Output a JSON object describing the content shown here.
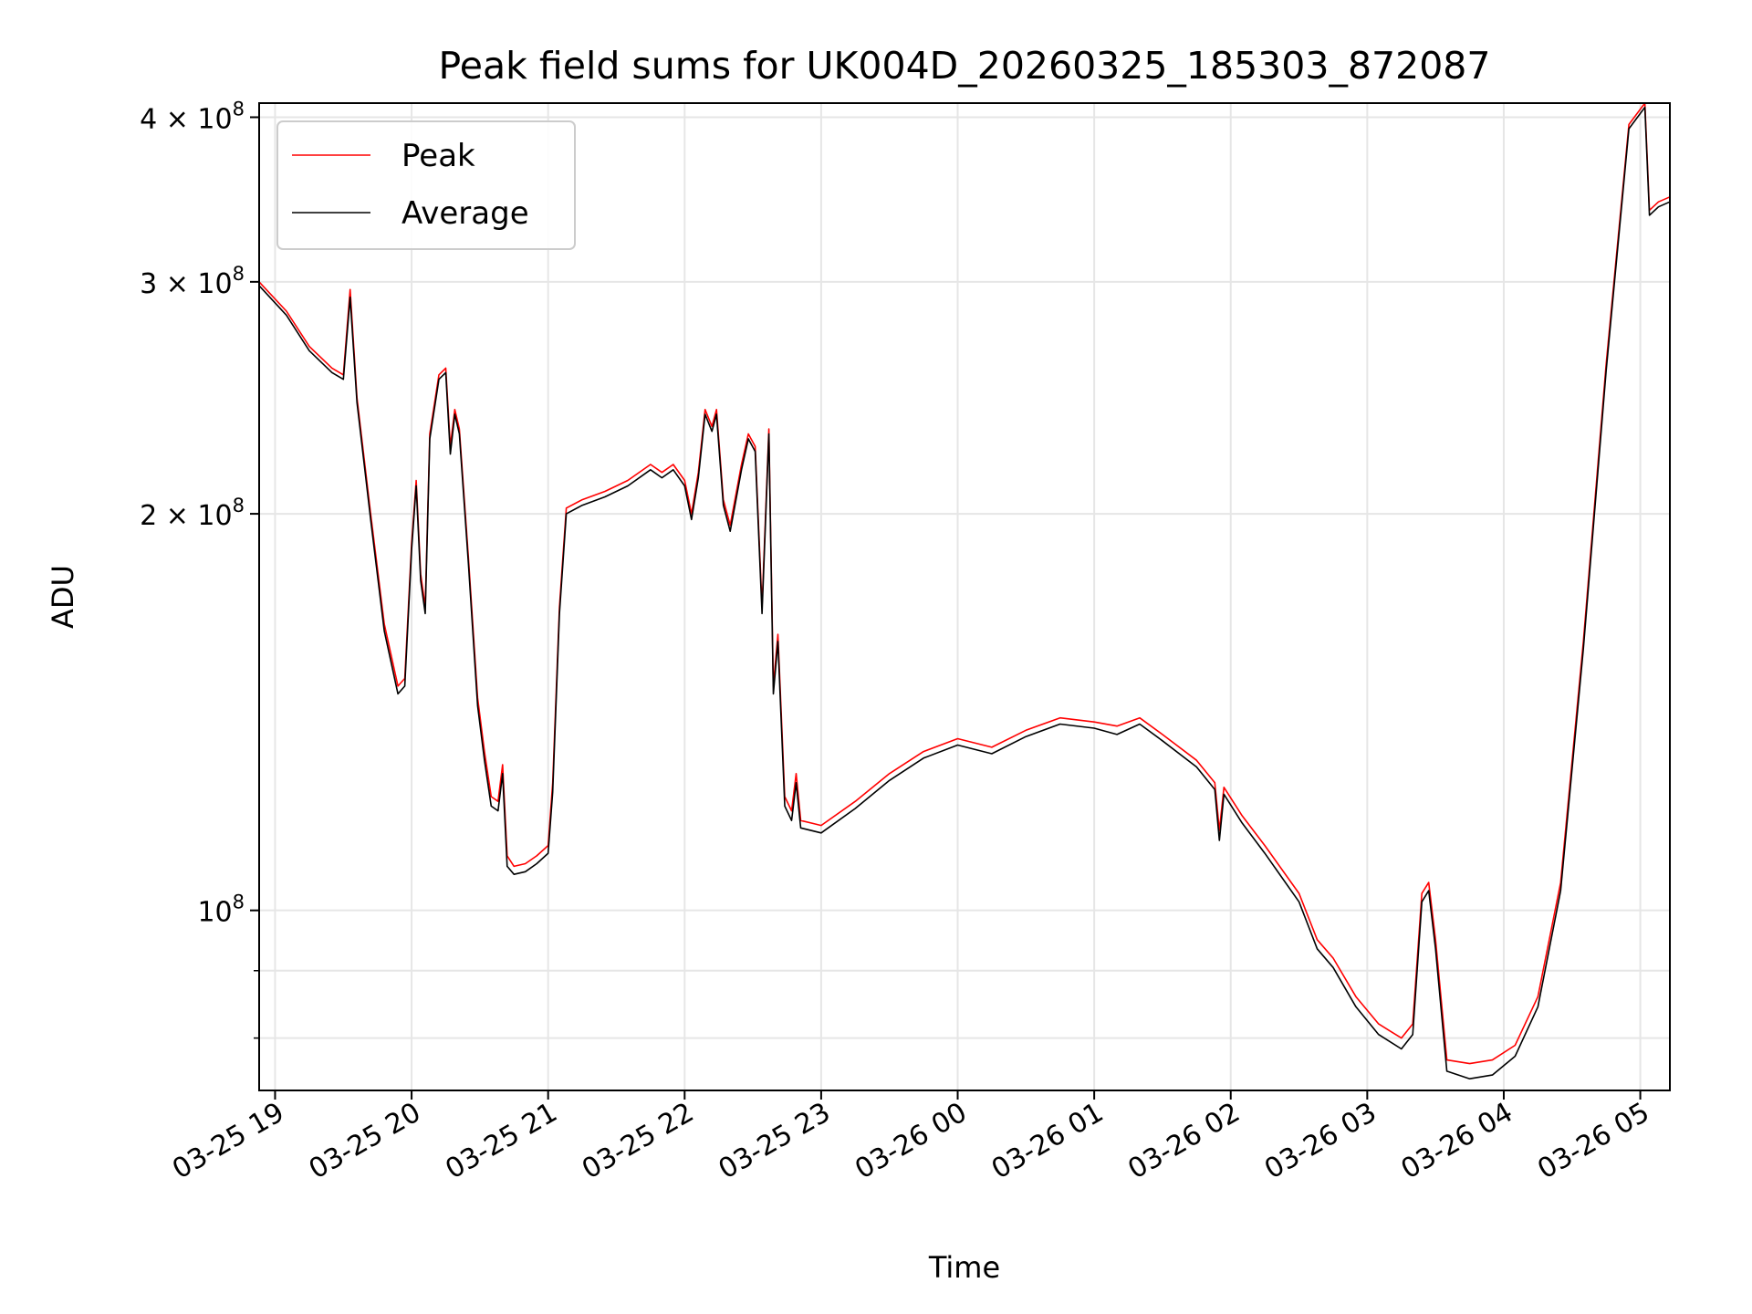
{
  "chart_data": {
    "type": "line",
    "title": "Peak field sums for UK004D_20260325_185303_872087",
    "xlabel": "Time",
    "ylabel": "ADU",
    "yscale": "log",
    "grid": true,
    "legend_position": "top-left",
    "xlim": [
      "2026-03-25 18:53",
      "2026-03-26 05:13"
    ],
    "ylim": [
      73000000,
      410000000
    ],
    "x_ticks": [
      "03-25 19",
      "03-25 20",
      "03-25 21",
      "03-25 22",
      "03-25 23",
      "03-26 00",
      "03-26 01",
      "03-26 02",
      "03-26 03",
      "03-26 04",
      "03-26 05"
    ],
    "y_ticks": [
      {
        "value": 100000000,
        "base": "10",
        "exponent": "8",
        "mantissa": ""
      },
      {
        "value": 200000000,
        "base": "10",
        "exponent": "8",
        "mantissa": "2"
      },
      {
        "value": 300000000,
        "base": "10",
        "exponent": "8",
        "mantissa": "3"
      },
      {
        "value": 400000000,
        "base": "10",
        "exponent": "8",
        "mantissa": "4"
      }
    ],
    "y_minor_ticks": [
      80000000,
      90000000
    ],
    "series": [
      {
        "name": "Peak",
        "color": "#ff0000",
        "points": [
          [
            "2026-03-25 18:53",
            300000000
          ],
          [
            "2026-03-25 19:05",
            285000000
          ],
          [
            "2026-03-25 19:15",
            268000000
          ],
          [
            "2026-03-25 19:25",
            258000000
          ],
          [
            "2026-03-25 19:30",
            255000000
          ],
          [
            "2026-03-25 19:33",
            296000000
          ],
          [
            "2026-03-25 19:36",
            245000000
          ],
          [
            "2026-03-25 19:42",
            200000000
          ],
          [
            "2026-03-25 19:48",
            165000000
          ],
          [
            "2026-03-25 19:54",
            148000000
          ],
          [
            "2026-03-25 19:57",
            150000000
          ],
          [
            "2026-03-25 20:00",
            190000000
          ],
          [
            "2026-03-25 20:02",
            212000000
          ],
          [
            "2026-03-25 20:04",
            180000000
          ],
          [
            "2026-03-25 20:06",
            170000000
          ],
          [
            "2026-03-25 20:08",
            230000000
          ],
          [
            "2026-03-25 20:12",
            255000000
          ],
          [
            "2026-03-25 20:15",
            258000000
          ],
          [
            "2026-03-25 20:17",
            225000000
          ],
          [
            "2026-03-25 20:19",
            240000000
          ],
          [
            "2026-03-25 20:21",
            232000000
          ],
          [
            "2026-03-25 20:25",
            185000000
          ],
          [
            "2026-03-25 20:29",
            145000000
          ],
          [
            "2026-03-25 20:32",
            132000000
          ],
          [
            "2026-03-25 20:35",
            122000000
          ],
          [
            "2026-03-25 20:38",
            121000000
          ],
          [
            "2026-03-25 20:40",
            129000000
          ],
          [
            "2026-03-25 20:42",
            110000000
          ],
          [
            "2026-03-25 20:45",
            108000000
          ],
          [
            "2026-03-25 20:50",
            108500000
          ],
          [
            "2026-03-25 20:55",
            110000000
          ],
          [
            "2026-03-25 21:00",
            112000000
          ],
          [
            "2026-03-25 21:02",
            125000000
          ],
          [
            "2026-03-25 21:05",
            170000000
          ],
          [
            "2026-03-25 21:08",
            202000000
          ],
          [
            "2026-03-25 21:15",
            205000000
          ],
          [
            "2026-03-25 21:25",
            208000000
          ],
          [
            "2026-03-25 21:35",
            212000000
          ],
          [
            "2026-03-25 21:45",
            218000000
          ],
          [
            "2026-03-25 21:50",
            215000000
          ],
          [
            "2026-03-25 21:55",
            218000000
          ],
          [
            "2026-03-25 22:00",
            212000000
          ],
          [
            "2026-03-25 22:03",
            200000000
          ],
          [
            "2026-03-25 22:06",
            215000000
          ],
          [
            "2026-03-25 22:09",
            240000000
          ],
          [
            "2026-03-25 22:12",
            233000000
          ],
          [
            "2026-03-25 22:14",
            240000000
          ],
          [
            "2026-03-25 22:17",
            205000000
          ],
          [
            "2026-03-25 22:20",
            196000000
          ],
          [
            "2026-03-25 22:25",
            218000000
          ],
          [
            "2026-03-25 22:28",
            230000000
          ],
          [
            "2026-03-25 22:31",
            225000000
          ],
          [
            "2026-03-25 22:34",
            170000000
          ],
          [
            "2026-03-25 22:37",
            232000000
          ],
          [
            "2026-03-25 22:39",
            148000000
          ],
          [
            "2026-03-25 22:41",
            162000000
          ],
          [
            "2026-03-25 22:44",
            122000000
          ],
          [
            "2026-03-25 22:47",
            119000000
          ],
          [
            "2026-03-25 22:49",
            127000000
          ],
          [
            "2026-03-25 22:51",
            117000000
          ],
          [
            "2026-03-25 23:00",
            116000000
          ],
          [
            "2026-03-25 23:15",
            121000000
          ],
          [
            "2026-03-25 23:30",
            127000000
          ],
          [
            "2026-03-25 23:45",
            132000000
          ],
          [
            "2026-03-26 00:00",
            135000000
          ],
          [
            "2026-03-26 00:15",
            133000000
          ],
          [
            "2026-03-26 00:30",
            137000000
          ],
          [
            "2026-03-26 00:45",
            140000000
          ],
          [
            "2026-03-26 01:00",
            139000000
          ],
          [
            "2026-03-26 01:10",
            138000000
          ],
          [
            "2026-03-26 01:20",
            140000000
          ],
          [
            "2026-03-26 01:30",
            136000000
          ],
          [
            "2026-03-26 01:45",
            130000000
          ],
          [
            "2026-03-26 01:53",
            125000000
          ],
          [
            "2026-03-26 01:55",
            115000000
          ],
          [
            "2026-03-26 01:57",
            124000000
          ],
          [
            "2026-03-26 02:05",
            118000000
          ],
          [
            "2026-03-26 02:15",
            112000000
          ],
          [
            "2026-03-26 02:30",
            103000000
          ],
          [
            "2026-03-26 02:38",
            95000000
          ],
          [
            "2026-03-26 02:45",
            92000000
          ],
          [
            "2026-03-26 02:55",
            86000000
          ],
          [
            "2026-03-26 03:05",
            82000000
          ],
          [
            "2026-03-26 03:15",
            80000000
          ],
          [
            "2026-03-26 03:20",
            82000000
          ],
          [
            "2026-03-26 03:24",
            103000000
          ],
          [
            "2026-03-26 03:27",
            105000000
          ],
          [
            "2026-03-26 03:30",
            95000000
          ],
          [
            "2026-03-26 03:35",
            77000000
          ],
          [
            "2026-03-26 03:45",
            76500000
          ],
          [
            "2026-03-26 03:55",
            77000000
          ],
          [
            "2026-03-26 04:05",
            79000000
          ],
          [
            "2026-03-26 04:15",
            86000000
          ],
          [
            "2026-03-26 04:25",
            105000000
          ],
          [
            "2026-03-26 04:35",
            160000000
          ],
          [
            "2026-03-26 04:45",
            260000000
          ],
          [
            "2026-03-26 04:55",
            395000000
          ],
          [
            "2026-03-26 05:02",
            410000000
          ],
          [
            "2026-03-26 05:04",
            340000000
          ],
          [
            "2026-03-26 05:08",
            345000000
          ],
          [
            "2026-03-26 05:13",
            348000000
          ]
        ]
      },
      {
        "name": "Average",
        "color": "#000000",
        "points": [
          [
            "2026-03-25 18:53",
            298000000
          ],
          [
            "2026-03-25 19:05",
            283000000
          ],
          [
            "2026-03-25 19:15",
            266000000
          ],
          [
            "2026-03-25 19:25",
            256000000
          ],
          [
            "2026-03-25 19:30",
            253000000
          ],
          [
            "2026-03-25 19:33",
            292000000
          ],
          [
            "2026-03-25 19:36",
            243000000
          ],
          [
            "2026-03-25 19:42",
            198000000
          ],
          [
            "2026-03-25 19:48",
            163000000
          ],
          [
            "2026-03-25 19:54",
            146000000
          ],
          [
            "2026-03-25 19:57",
            148000000
          ],
          [
            "2026-03-25 20:00",
            188000000
          ],
          [
            "2026-03-25 20:02",
            210000000
          ],
          [
            "2026-03-25 20:04",
            178000000
          ],
          [
            "2026-03-25 20:06",
            168000000
          ],
          [
            "2026-03-25 20:08",
            228000000
          ],
          [
            "2026-03-25 20:12",
            253000000
          ],
          [
            "2026-03-25 20:15",
            256000000
          ],
          [
            "2026-03-25 20:17",
            222000000
          ],
          [
            "2026-03-25 20:19",
            238000000
          ],
          [
            "2026-03-25 20:21",
            230000000
          ],
          [
            "2026-03-25 20:25",
            183000000
          ],
          [
            "2026-03-25 20:29",
            143000000
          ],
          [
            "2026-03-25 20:32",
            130000000
          ],
          [
            "2026-03-25 20:35",
            120000000
          ],
          [
            "2026-03-25 20:38",
            119000000
          ],
          [
            "2026-03-25 20:40",
            127000000
          ],
          [
            "2026-03-25 20:42",
            108000000
          ],
          [
            "2026-03-25 20:45",
            106500000
          ],
          [
            "2026-03-25 20:50",
            107000000
          ],
          [
            "2026-03-25 20:55",
            108500000
          ],
          [
            "2026-03-25 21:00",
            110500000
          ],
          [
            "2026-03-25 21:02",
            123000000
          ],
          [
            "2026-03-25 21:05",
            168000000
          ],
          [
            "2026-03-25 21:08",
            200000000
          ],
          [
            "2026-03-25 21:15",
            203000000
          ],
          [
            "2026-03-25 21:25",
            206000000
          ],
          [
            "2026-03-25 21:35",
            210000000
          ],
          [
            "2026-03-25 21:45",
            216000000
          ],
          [
            "2026-03-25 21:50",
            213000000
          ],
          [
            "2026-03-25 21:55",
            216000000
          ],
          [
            "2026-03-25 22:00",
            210000000
          ],
          [
            "2026-03-25 22:03",
            198000000
          ],
          [
            "2026-03-25 22:06",
            213000000
          ],
          [
            "2026-03-25 22:09",
            238000000
          ],
          [
            "2026-03-25 22:12",
            231000000
          ],
          [
            "2026-03-25 22:14",
            238000000
          ],
          [
            "2026-03-25 22:17",
            203000000
          ],
          [
            "2026-03-25 22:20",
            194000000
          ],
          [
            "2026-03-25 22:25",
            216000000
          ],
          [
            "2026-03-25 22:28",
            228000000
          ],
          [
            "2026-03-25 22:31",
            223000000
          ],
          [
            "2026-03-25 22:34",
            168000000
          ],
          [
            "2026-03-25 22:37",
            230000000
          ],
          [
            "2026-03-25 22:39",
            146000000
          ],
          [
            "2026-03-25 22:41",
            160000000
          ],
          [
            "2026-03-25 22:44",
            120000000
          ],
          [
            "2026-03-25 22:47",
            117000000
          ],
          [
            "2026-03-25 22:49",
            125000000
          ],
          [
            "2026-03-25 22:51",
            115500000
          ],
          [
            "2026-03-25 23:00",
            114500000
          ],
          [
            "2026-03-25 23:15",
            119500000
          ],
          [
            "2026-03-25 23:30",
            125500000
          ],
          [
            "2026-03-25 23:45",
            130500000
          ],
          [
            "2026-03-26 00:00",
            133500000
          ],
          [
            "2026-03-26 00:15",
            131500000
          ],
          [
            "2026-03-26 00:30",
            135500000
          ],
          [
            "2026-03-26 00:45",
            138500000
          ],
          [
            "2026-03-26 01:00",
            137500000
          ],
          [
            "2026-03-26 01:10",
            136000000
          ],
          [
            "2026-03-26 01:20",
            138500000
          ],
          [
            "2026-03-26 01:30",
            134500000
          ],
          [
            "2026-03-26 01:45",
            128500000
          ],
          [
            "2026-03-26 01:53",
            123500000
          ],
          [
            "2026-03-26 01:55",
            113000000
          ],
          [
            "2026-03-26 01:57",
            122500000
          ],
          [
            "2026-03-26 02:05",
            116500000
          ],
          [
            "2026-03-26 02:15",
            110500000
          ],
          [
            "2026-03-26 02:30",
            101500000
          ],
          [
            "2026-03-26 02:38",
            93500000
          ],
          [
            "2026-03-26 02:45",
            90500000
          ],
          [
            "2026-03-26 02:55",
            84500000
          ],
          [
            "2026-03-26 03:05",
            80500000
          ],
          [
            "2026-03-26 03:15",
            78500000
          ],
          [
            "2026-03-26 03:20",
            80500000
          ],
          [
            "2026-03-26 03:24",
            101500000
          ],
          [
            "2026-03-26 03:27",
            103500000
          ],
          [
            "2026-03-26 03:30",
            93500000
          ],
          [
            "2026-03-26 03:35",
            75500000
          ],
          [
            "2026-03-26 03:45",
            74500000
          ],
          [
            "2026-03-26 03:55",
            75000000
          ],
          [
            "2026-03-26 04:05",
            77500000
          ],
          [
            "2026-03-26 04:15",
            84500000
          ],
          [
            "2026-03-26 04:25",
            103500000
          ],
          [
            "2026-03-26 04:35",
            158000000
          ],
          [
            "2026-03-26 04:45",
            257000000
          ],
          [
            "2026-03-26 04:55",
            392000000
          ],
          [
            "2026-03-26 05:02",
            407000000
          ],
          [
            "2026-03-26 05:04",
            337000000
          ],
          [
            "2026-03-26 05:08",
            342000000
          ],
          [
            "2026-03-26 05:13",
            345000000
          ]
        ]
      }
    ]
  }
}
